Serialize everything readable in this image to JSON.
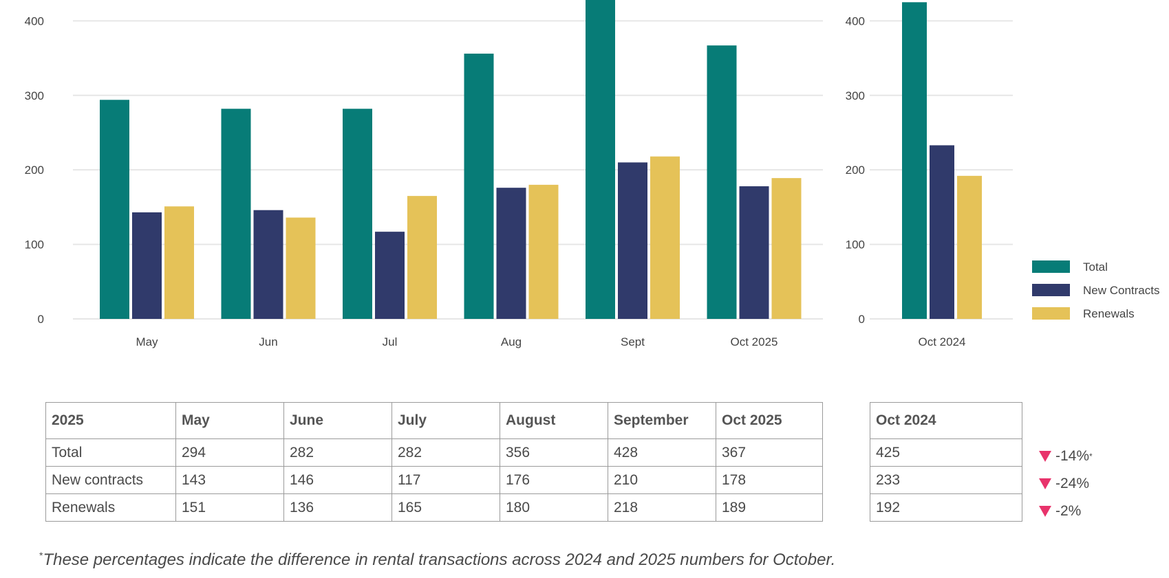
{
  "chart_data": [
    {
      "type": "bar",
      "categories": [
        "May",
        "Jun",
        "Jul",
        "Aug",
        "Sept",
        "Oct 2025"
      ],
      "series": [
        {
          "name": "Total",
          "values": [
            294,
            282,
            282,
            356,
            428,
            367
          ]
        },
        {
          "name": "New Contracts",
          "values": [
            143,
            146,
            117,
            176,
            210,
            178
          ]
        },
        {
          "name": "Renewals",
          "values": [
            151,
            136,
            165,
            180,
            218,
            189
          ]
        }
      ],
      "yticks": [
        0,
        100,
        200,
        300,
        400
      ],
      "ylim": [
        0,
        428
      ],
      "grid": true
    },
    {
      "type": "bar",
      "categories": [
        "Oct 2024"
      ],
      "series": [
        {
          "name": "Total",
          "values": [
            425
          ]
        },
        {
          "name": "New Contracts",
          "values": [
            233
          ]
        },
        {
          "name": "Renewals",
          "values": [
            192
          ]
        }
      ],
      "yticks": [
        0,
        100,
        200,
        300,
        400
      ],
      "ylim": [
        0,
        428
      ],
      "grid": true,
      "legend": [
        "Total",
        "New Contracts",
        "Renewals"
      ],
      "legend_position": "right"
    }
  ],
  "colors": {
    "total": "#077c77",
    "new": "#303a6b",
    "renewals": "#e5c258",
    "down_arrow": "#e8336b",
    "grid": "#e6e6e6"
  },
  "table2025": {
    "headers": [
      "2025",
      "May",
      "June",
      "July",
      "August",
      "September",
      "Oct 2025"
    ],
    "rows": [
      [
        "Total",
        "294",
        "282",
        "282",
        "356",
        "428",
        "367"
      ],
      [
        "New contracts",
        "143",
        "146",
        "117",
        "176",
        "210",
        "178"
      ],
      [
        "Renewals",
        "151",
        "136",
        "165",
        "180",
        "218",
        "189"
      ]
    ]
  },
  "table2024": {
    "header": "Oct 2024",
    "rows": [
      "425",
      "233",
      "192"
    ]
  },
  "diffs": [
    {
      "text": "-14%",
      "mark": "*"
    },
    {
      "text": "-24%",
      "mark": ""
    },
    {
      "text": "-2%",
      "mark": ""
    }
  ],
  "footnote": {
    "mark": "*",
    "text": "These percentages indicate the difference in rental transactions across 2024 and 2025 numbers for October."
  }
}
